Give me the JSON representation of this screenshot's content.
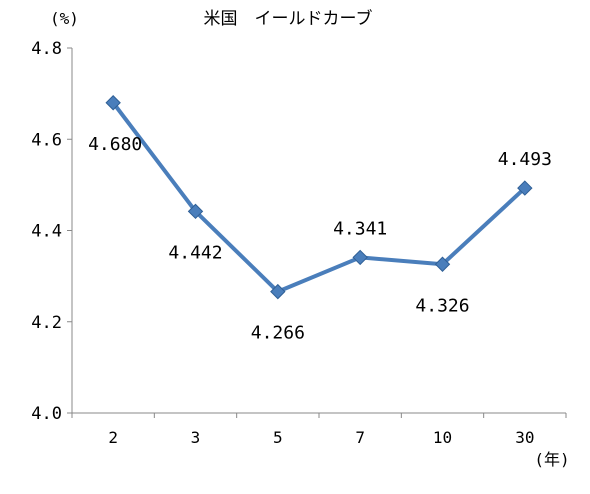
{
  "chart_data": {
    "type": "line",
    "title": "米国　イールドカーブ",
    "ylabel": "(%)",
    "xlabel": "(年)",
    "categories": [
      "2",
      "3",
      "5",
      "7",
      "10",
      "30"
    ],
    "series": [
      {
        "values": [
          4.68,
          4.442,
          4.266,
          4.341,
          4.326,
          4.493
        ],
        "labels": [
          "4.680",
          "4.442",
          "4.266",
          "4.341",
          "4.326",
          "4.493"
        ],
        "label_side": [
          "below",
          "below",
          "below",
          "above",
          "below",
          "above"
        ]
      }
    ],
    "ylim": [
      4.0,
      4.8
    ],
    "yticks": [
      "4.0",
      "4.2",
      "4.4",
      "4.6",
      "4.8"
    ],
    "grid": false,
    "line_color": "#4a7ebb",
    "marker": "diamond"
  }
}
